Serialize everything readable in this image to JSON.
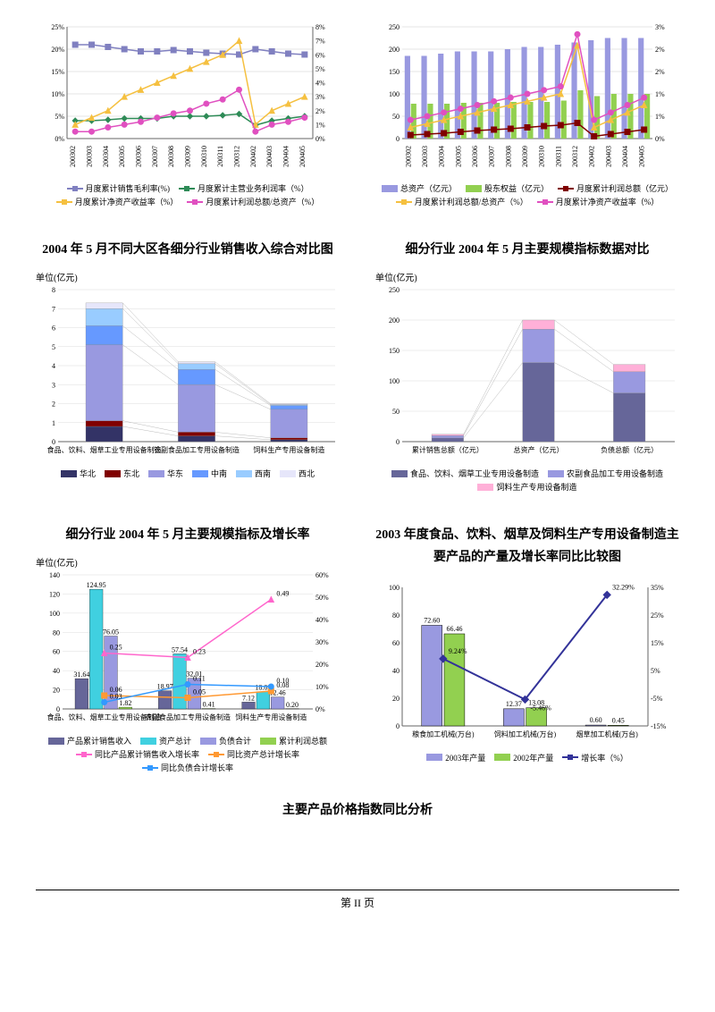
{
  "chart1": {
    "type": "line-dual-axis",
    "y1_labels": [
      "0%",
      "5%",
      "10%",
      "15%",
      "20%",
      "25%"
    ],
    "y2_labels": [
      "0%",
      "1%",
      "2%",
      "3%",
      "4%",
      "5%",
      "6%",
      "7%",
      "8%"
    ],
    "x_labels": [
      "200302",
      "200303",
      "200304",
      "200305",
      "200306",
      "200307",
      "200308",
      "200309",
      "200310",
      "200311",
      "200312",
      "200402",
      "200403",
      "200404",
      "200405"
    ],
    "series": [
      {
        "name": "月度累计销售毛利率(%)",
        "color": "#8080c0",
        "marker": "square",
        "axis": "left",
        "data": [
          21,
          21,
          20.5,
          20,
          19.5,
          19.5,
          19.8,
          19.5,
          19.2,
          19,
          18.8,
          20,
          19.5,
          19,
          18.8
        ]
      },
      {
        "name": "月度累计主营业务利润率（%）",
        "color": "#2e8b57",
        "marker": "diamond",
        "axis": "left",
        "data": [
          4,
          4,
          4.2,
          4.5,
          4.5,
          4.5,
          5,
          5,
          5,
          5.2,
          5.5,
          3,
          4,
          4.5,
          5
        ]
      },
      {
        "name": "月度累计净资产收益率（%）",
        "color": "#f5c040",
        "marker": "triangle",
        "axis": "right",
        "data": [
          1,
          1.5,
          2,
          3,
          3.5,
          4,
          4.5,
          5,
          5.5,
          6,
          7,
          1,
          2,
          2.5,
          3
        ]
      },
      {
        "name": "月度累计利润总额/总资产（%）",
        "color": "#e050c0",
        "marker": "circle",
        "axis": "right",
        "data": [
          0.5,
          0.5,
          0.8,
          1,
          1.2,
          1.5,
          1.8,
          2,
          2.5,
          2.8,
          3.5,
          0.5,
          1,
          1.2,
          1.5
        ]
      }
    ],
    "legend": [
      "月度累计销售毛利率(%)",
      "月度累计主营业务利润率（%）",
      "月度累计净资产收益率（%）",
      "月度累计利润总额/总资产（%）"
    ]
  },
  "chart2": {
    "type": "bar-line-dual-axis",
    "y1_labels": [
      "0",
      "50",
      "100",
      "150",
      "200",
      "250"
    ],
    "y2_labels": [
      "0%",
      "1%",
      "1%",
      "2%",
      "2%",
      "3%"
    ],
    "x_labels": [
      "200302",
      "200303",
      "200304",
      "200305",
      "200306",
      "200307",
      "200308",
      "200309",
      "200310",
      "200311",
      "200312",
      "200402",
      "200403",
      "200404",
      "200405"
    ],
    "bars": [
      {
        "name": "总资产（亿元）",
        "color": "#9999e0",
        "data": [
          185,
          185,
          190,
          195,
          195,
          195,
          200,
          205,
          205,
          210,
          215,
          220,
          225,
          225,
          225
        ]
      },
      {
        "name": "股东权益（亿元）",
        "color": "#92d050",
        "data": [
          78,
          78,
          78,
          80,
          80,
          80,
          82,
          82,
          82,
          85,
          108,
          95,
          100,
          100,
          100
        ]
      }
    ],
    "lines": [
      {
        "name": "月度累计利润总额（亿元）",
        "color": "#800000",
        "marker": "square",
        "data": [
          8,
          10,
          12,
          15,
          18,
          20,
          22,
          25,
          28,
          30,
          35,
          5,
          10,
          15,
          20
        ]
      },
      {
        "name": "月度累计利润总额/总资产（%）",
        "color": "#f5c040",
        "marker": "triangle",
        "axis": "right",
        "data": [
          0.3,
          0.4,
          0.5,
          0.6,
          0.7,
          0.8,
          0.9,
          1.0,
          1.1,
          1.2,
          2.5,
          0.3,
          0.5,
          0.7,
          0.9
        ]
      },
      {
        "name": "月度累计净资产收益率（%）",
        "color": "#e050c0",
        "marker": "circle",
        "axis": "right",
        "data": [
          0.5,
          0.6,
          0.7,
          0.8,
          0.9,
          1.0,
          1.1,
          1.2,
          1.3,
          1.4,
          2.8,
          0.5,
          0.7,
          0.9,
          1.1
        ]
      }
    ],
    "legend": [
      "总资产（亿元）",
      "股东权益（亿元）",
      "月度累计利润总额（亿元）",
      "月度累计利润总额/总资产（%）",
      "月度累计净资产收益率（%）"
    ]
  },
  "chart3": {
    "title": "2004 年 5 月不同大区各细分行业销售收入综合对比图",
    "unit": "单位(亿元)",
    "type": "stacked-bar",
    "y_labels": [
      "0",
      "1",
      "2",
      "3",
      "4",
      "5",
      "6",
      "7",
      "8"
    ],
    "categories": [
      "食品、饮料、烟草工业专用设备制造",
      "农副食品加工专用设备制造",
      "饲料生产专用设备制造"
    ],
    "stacks": [
      {
        "name": "华北",
        "color": "#333366"
      },
      {
        "name": "东北",
        "color": "#800000"
      },
      {
        "name": "华东",
        "color": "#9999e0"
      },
      {
        "name": "中南",
        "color": "#6699ff"
      },
      {
        "name": "西南",
        "color": "#99ccff"
      },
      {
        "name": "西北",
        "color": "#e6e6fa"
      }
    ],
    "data": [
      [
        0.8,
        0.3,
        4.0,
        1.0,
        0.9,
        0.3
      ],
      [
        0.3,
        0.2,
        2.5,
        0.8,
        0.3,
        0.1
      ],
      [
        0.1,
        0.1,
        1.5,
        0.2,
        0.05,
        0.05
      ]
    ]
  },
  "chart4": {
    "title": "细分行业 2004 年 5 月主要规模指标数据对比",
    "unit": "单位(亿元)",
    "type": "stacked-bar",
    "y_labels": [
      "0",
      "50",
      "100",
      "150",
      "200",
      "250"
    ],
    "categories": [
      "累计销售总额（亿元）",
      "总资产（亿元）",
      "负债总额（亿元）"
    ],
    "stacks": [
      {
        "name": "食品、饮料、烟草工业专用设备制造",
        "color": "#666699"
      },
      {
        "name": "农副食品加工专用设备制造",
        "color": "#9999e0"
      },
      {
        "name": "饲料生产专用设备制造",
        "color": "#ffb0d8"
      }
    ],
    "data": [
      [
        6,
        4,
        2
      ],
      [
        130,
        55,
        15
      ],
      [
        80,
        35,
        12
      ]
    ]
  },
  "chart5": {
    "title": "细分行业 2004 年 5 月主要规模指标及增长率",
    "unit": "单位(亿元)",
    "type": "bar-line-dual",
    "y1_labels": [
      "0",
      "20",
      "40",
      "60",
      "80",
      "100",
      "120",
      "140"
    ],
    "y2_labels": [
      "0%",
      "10%",
      "20%",
      "30%",
      "40%",
      "50%",
      "60%"
    ],
    "categories": [
      "食品、饮料、烟草工业专用设备制造",
      "农副食品加工专用设备制造",
      "饲料生产专用设备制造"
    ],
    "bars": [
      {
        "name": "产品累计销售收入",
        "color": "#666699",
        "data": [
          31.64,
          18.97,
          7.12
        ],
        "labels": [
          "31.64",
          "18.97",
          "7.12"
        ]
      },
      {
        "name": "资产总计",
        "color": "#40d0e0",
        "data": [
          124.95,
          57.54,
          18.09
        ],
        "labels": [
          "124.95",
          "57.54",
          "18.09"
        ]
      },
      {
        "name": "负债合计",
        "color": "#9999e0",
        "data": [
          76.05,
          32.01,
          12.46
        ],
        "labels": [
          "76.05",
          "32.01",
          "12.46"
        ]
      },
      {
        "name": "累计利润总额",
        "color": "#92d050",
        "data": [
          1.82,
          0.41,
          0.2
        ],
        "labels": [
          "1.82",
          "0.41",
          "0.20"
        ]
      }
    ],
    "lines": [
      {
        "name": "同比产品累计销售收入增长率",
        "color": "#ff66cc",
        "marker": "triangle",
        "data": [
          0.25,
          0.23,
          0.49
        ],
        "labels": [
          "0.25",
          "0.23",
          "0.49"
        ]
      },
      {
        "name": "同比资产总计增长率",
        "color": "#ff9933",
        "marker": "square",
        "data": [
          0.06,
          0.05,
          0.08
        ],
        "labels": [
          "0.06",
          "0.05",
          "0.08"
        ]
      },
      {
        "name": "同比负债合计增长率",
        "color": "#3399ff",
        "marker": "circle",
        "data": [
          0.03,
          0.11,
          0.1
        ],
        "labels": [
          "0.03",
          "0.11",
          "0.10"
        ]
      }
    ],
    "legend": [
      "产品累计销售收入",
      "资产总计",
      "负债合计",
      "累计利润总额",
      "同比产品累计销售收入增长率",
      "同比资产总计增长率",
      "同比负债合计增长率"
    ]
  },
  "chart6": {
    "title": "2003 年度食品、饮料、烟草及饲料生产专用设备制造主要产品的产量及增长率同比比较图",
    "type": "bar-line-dual",
    "y1_labels": [
      "0",
      "20",
      "40",
      "60",
      "80",
      "100"
    ],
    "y2_labels": [
      "-15%",
      "-5%",
      "5%",
      "15%",
      "25%",
      "35%"
    ],
    "categories": [
      "粮食加工机械(万台)",
      "饲料加工机械(万台)",
      "烟草加工机械(万台)"
    ],
    "bars": [
      {
        "name": "2003年产量",
        "color": "#9999e0",
        "data": [
          72.6,
          12.37,
          0.6
        ],
        "labels": [
          "72.60",
          "12.37",
          "0.60"
        ]
      },
      {
        "name": "2002年产量",
        "color": "#92d050",
        "data": [
          66.46,
          13.08,
          0.45
        ],
        "labels": [
          "66.46",
          "13.08",
          "0.45"
        ]
      }
    ],
    "line": {
      "name": "增长率（%）",
      "color": "#333399",
      "marker": "diamond",
      "data": [
        9.24,
        -5.46,
        32.29
      ],
      "labels": [
        "9.24%",
        "-5.46%",
        "32.29%"
      ]
    },
    "legend": [
      "2003年产量",
      "2002年产量",
      "增长率（%）"
    ]
  },
  "footer_title": "主要产品价格指数同比分析",
  "page_footer": "第 II 页"
}
